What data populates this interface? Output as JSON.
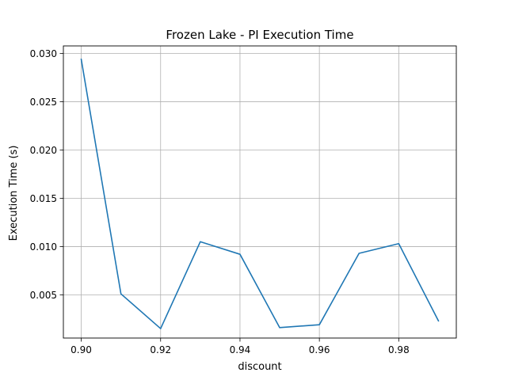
{
  "chart_data": {
    "type": "line",
    "title": "Frozen Lake - PI Execution Time",
    "xlabel": "discount",
    "ylabel": "Execution Time (s)",
    "x": [
      0.9,
      0.91,
      0.92,
      0.93,
      0.94,
      0.95,
      0.96,
      0.97,
      0.98,
      0.99
    ],
    "series": [
      {
        "values": [
          0.0294,
          0.0051,
          0.0015,
          0.0105,
          0.0092,
          0.0016,
          0.0019,
          0.0093,
          0.0103,
          0.0023
        ],
        "color": "#1f77b4"
      }
    ],
    "xlim": [
      0.8955,
      0.9945
    ],
    "ylim": [
      0.00052,
      0.03079
    ],
    "xticks": [
      0.9,
      0.92,
      0.94,
      0.96,
      0.98
    ],
    "xtick_labels": [
      "0.90",
      "0.92",
      "0.94",
      "0.96",
      "0.98"
    ],
    "yticks": [
      0.005,
      0.01,
      0.015,
      0.02,
      0.025,
      0.03
    ],
    "ytick_labels": [
      "0.005",
      "0.010",
      "0.015",
      "0.020",
      "0.025",
      "0.030"
    ],
    "grid": true,
    "grid_color": "#b0b0b0",
    "axes_color": "#000000",
    "background_color": "#ffffff"
  }
}
